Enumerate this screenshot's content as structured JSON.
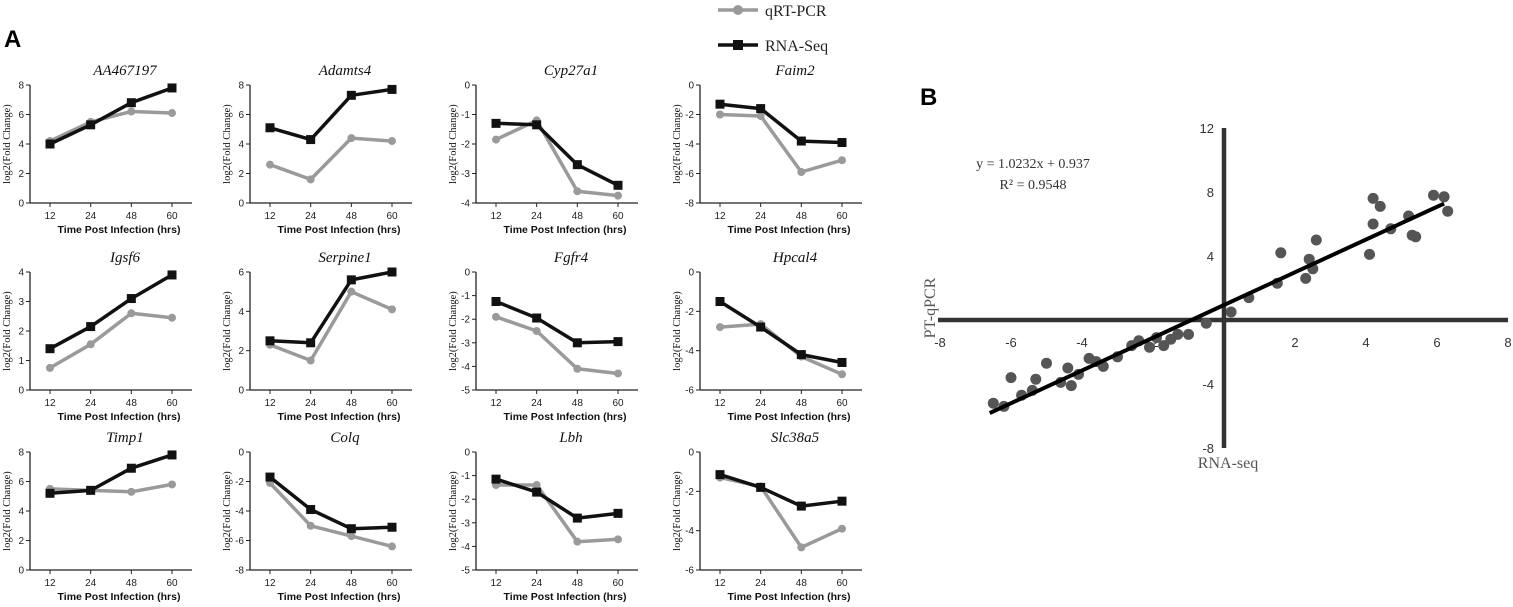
{
  "panel_a_label": "A",
  "panel_b_label": "B",
  "legend": {
    "qrtpcr": "qRT-PCR",
    "rnaseq": "RNA-Seq",
    "colors": {
      "qrtpcr": "#9a9a9a",
      "rnaseq": "#111111"
    }
  },
  "chart_data": [
    {
      "type": "line",
      "title": "AA467197",
      "categories": [
        "12",
        "24",
        "48",
        "60"
      ],
      "xlabel": "Time Post Infection (hrs)",
      "ylabel": "log2(Fold Change)",
      "ylim": [
        0,
        8
      ],
      "yticks": [
        "0",
        "2",
        "4",
        "6",
        "8"
      ],
      "series": [
        {
          "name": "qRT-PCR",
          "values": [
            4.2,
            5.5,
            6.2,
            6.1
          ]
        },
        {
          "name": "RNA-Seq",
          "values": [
            4.0,
            5.3,
            6.8,
            7.8
          ]
        }
      ]
    },
    {
      "type": "line",
      "title": "Adamts4",
      "categories": [
        "12",
        "24",
        "48",
        "60"
      ],
      "xlabel": "Time Post Infection (hrs)",
      "ylabel": "log2(Fold Change)",
      "ylim": [
        0,
        8
      ],
      "yticks": [
        "0",
        "2",
        "4",
        "6",
        "8"
      ],
      "series": [
        {
          "name": "qRT-PCR",
          "values": [
            2.6,
            1.6,
            4.4,
            4.2
          ]
        },
        {
          "name": "RNA-Seq",
          "values": [
            5.1,
            4.3,
            7.3,
            7.7
          ]
        }
      ]
    },
    {
      "type": "line",
      "title": "Cyp27a1",
      "categories": [
        "12",
        "24",
        "48",
        "60"
      ],
      "xlabel": "Time Post Infection (hrs)",
      "ylabel": "log2(Fold Change)",
      "ylim": [
        -4,
        0
      ],
      "yticks": [
        "-4",
        "-3",
        "-2",
        "-1",
        "0"
      ],
      "series": [
        {
          "name": "qRT-PCR",
          "values": [
            -1.85,
            -1.2,
            -3.6,
            -3.75
          ]
        },
        {
          "name": "RNA-Seq",
          "values": [
            -1.3,
            -1.35,
            -2.7,
            -3.4
          ]
        }
      ]
    },
    {
      "type": "line",
      "title": "Faim2",
      "categories": [
        "12",
        "24",
        "48",
        "60"
      ],
      "xlabel": "Time Post Infection (hrs)",
      "ylabel": "log2(Fold Change)",
      "ylim": [
        -8,
        0
      ],
      "yticks": [
        "-8",
        "-6",
        "-4",
        "-2",
        "0"
      ],
      "series": [
        {
          "name": "qRT-PCR",
          "values": [
            -2.0,
            -2.1,
            -5.9,
            -5.1
          ]
        },
        {
          "name": "RNA-Seq",
          "values": [
            -1.3,
            -1.6,
            -3.8,
            -3.9
          ]
        }
      ]
    },
    {
      "type": "line",
      "title": "Igsf6",
      "categories": [
        "12",
        "24",
        "48",
        "60"
      ],
      "xlabel": "Time Post Infection (hrs)",
      "ylabel": "log2(Fold Change)",
      "ylim": [
        0,
        4
      ],
      "yticks": [
        "0",
        "1",
        "2",
        "3",
        "4"
      ],
      "series": [
        {
          "name": "qRT-PCR",
          "values": [
            0.75,
            1.55,
            2.6,
            2.45
          ]
        },
        {
          "name": "RNA-Seq",
          "values": [
            1.4,
            2.15,
            3.1,
            3.9
          ]
        }
      ]
    },
    {
      "type": "line",
      "title": "Serpine1",
      "categories": [
        "12",
        "24",
        "48",
        "60"
      ],
      "xlabel": "Time Post Infection (hrs)",
      "ylabel": "log2(Fold Change)",
      "ylim": [
        0,
        6
      ],
      "yticks": [
        "0",
        "2",
        "4",
        "6"
      ],
      "series": [
        {
          "name": "qRT-PCR",
          "values": [
            2.3,
            1.5,
            5.0,
            4.1
          ]
        },
        {
          "name": "RNA-Seq",
          "values": [
            2.5,
            2.4,
            5.6,
            6.0
          ]
        }
      ]
    },
    {
      "type": "line",
      "title": "Fgfr4",
      "categories": [
        "12",
        "24",
        "48",
        "60"
      ],
      "xlabel": "Time Post Infection (hrs)",
      "ylabel": "log2(Fold Change)",
      "ylim": [
        -5,
        0
      ],
      "yticks": [
        "-5",
        "-4",
        "-3",
        "-2",
        "-1",
        "0"
      ],
      "series": [
        {
          "name": "qRT-PCR",
          "values": [
            -1.9,
            -2.5,
            -4.1,
            -4.3
          ]
        },
        {
          "name": "RNA-Seq",
          "values": [
            -1.25,
            -1.95,
            -3.0,
            -2.95
          ]
        }
      ]
    },
    {
      "type": "line",
      "title": "Hpcal4",
      "categories": [
        "12",
        "24",
        "48",
        "60"
      ],
      "xlabel": "Time Post Infection (hrs)",
      "ylabel": "log2(Fold Change)",
      "ylim": [
        -6,
        0
      ],
      "yticks": [
        "-6",
        "-4",
        "-2",
        "0"
      ],
      "series": [
        {
          "name": "qRT-PCR",
          "values": [
            -2.8,
            -2.65,
            -4.3,
            -5.2
          ]
        },
        {
          "name": "RNA-Seq",
          "values": [
            -1.5,
            -2.8,
            -4.2,
            -4.6
          ]
        }
      ]
    },
    {
      "type": "line",
      "title": "Timp1",
      "categories": [
        "12",
        "24",
        "48",
        "60"
      ],
      "xlabel": "Time Post Infection (hrs)",
      "ylabel": "log2(Fold Change)",
      "ylim": [
        0,
        8
      ],
      "yticks": [
        "0",
        "2",
        "4",
        "6",
        "8"
      ],
      "series": [
        {
          "name": "qRT-PCR",
          "values": [
            5.5,
            5.4,
            5.3,
            5.8
          ]
        },
        {
          "name": "RNA-Seq",
          "values": [
            5.2,
            5.4,
            6.9,
            7.8
          ]
        }
      ]
    },
    {
      "type": "line",
      "title": "Colq",
      "categories": [
        "12",
        "24",
        "48",
        "60"
      ],
      "xlabel": "Time Post Infection (hrs)",
      "ylabel": "log2(Fold Change)",
      "ylim": [
        -8,
        0
      ],
      "yticks": [
        "-8",
        "-6",
        "-4",
        "-2",
        "0"
      ],
      "series": [
        {
          "name": "qRT-PCR",
          "values": [
            -2.1,
            -5.0,
            -5.7,
            -6.4
          ]
        },
        {
          "name": "RNA-Seq",
          "values": [
            -1.7,
            -3.9,
            -5.2,
            -5.1
          ]
        }
      ]
    },
    {
      "type": "line",
      "title": "Lbh",
      "categories": [
        "12",
        "24",
        "48",
        "60"
      ],
      "xlabel": "Time Post Infection (hrs)",
      "ylabel": "log2(Fold Change)",
      "ylim": [
        -5,
        0
      ],
      "yticks": [
        "-5",
        "-4",
        "-3",
        "-2",
        "-1",
        "0"
      ],
      "series": [
        {
          "name": "qRT-PCR",
          "values": [
            -1.4,
            -1.4,
            -3.8,
            -3.7
          ]
        },
        {
          "name": "RNA-Seq",
          "values": [
            -1.15,
            -1.7,
            -2.8,
            -2.6
          ]
        }
      ]
    },
    {
      "type": "line",
      "title": "Slc38a5",
      "categories": [
        "12",
        "24",
        "48",
        "60"
      ],
      "xlabel": "Time Post Infection (hrs)",
      "ylabel": "log2(Fold Change)",
      "ylim": [
        -6,
        0
      ],
      "yticks": [
        "-6",
        "-4",
        "-2",
        "0"
      ],
      "series": [
        {
          "name": "qRT-PCR",
          "values": [
            -1.3,
            -1.75,
            -4.85,
            -3.9
          ]
        },
        {
          "name": "RNA-Seq",
          "values": [
            -1.15,
            -1.8,
            -2.75,
            -2.5
          ]
        }
      ]
    },
    {
      "type": "scatter",
      "title": "",
      "xlabel": "RNA-seq",
      "ylabel": "PT-qPCR",
      "xlim": [
        -8,
        8
      ],
      "ylim": [
        -8,
        12
      ],
      "xticks": [
        "-8",
        "-6",
        "-4",
        "-2",
        "2",
        "4",
        "6",
        "8"
      ],
      "yticks": [
        "-8",
        "-4",
        "4",
        "8",
        "12"
      ],
      "equation": "y = 1.0232x + 0.937",
      "r2": "R² = 0.9548",
      "fit": {
        "slope": 1.0232,
        "intercept": 0.937,
        "x_range": [
          -6.6,
          6.2
        ]
      },
      "points": [
        [
          -6.5,
          -5.2
        ],
        [
          -6.2,
          -5.4
        ],
        [
          -6.0,
          -3.6
        ],
        [
          -5.7,
          -4.7
        ],
        [
          -5.4,
          -4.4
        ],
        [
          -5.3,
          -3.7
        ],
        [
          -5.0,
          -2.7
        ],
        [
          -4.6,
          -3.9
        ],
        [
          -4.4,
          -3.0
        ],
        [
          -4.3,
          -4.1
        ],
        [
          -4.1,
          -3.4
        ],
        [
          -3.8,
          -2.4
        ],
        [
          -3.6,
          -2.6
        ],
        [
          -3.4,
          -2.9
        ],
        [
          -3.0,
          -2.3
        ],
        [
          -2.6,
          -1.6
        ],
        [
          -2.4,
          -1.3
        ],
        [
          -2.1,
          -1.7
        ],
        [
          -1.9,
          -1.1
        ],
        [
          -1.7,
          -1.6
        ],
        [
          -1.5,
          -1.2
        ],
        [
          -1.3,
          -0.9
        ],
        [
          -1.0,
          -0.9
        ],
        [
          -0.5,
          -0.2
        ],
        [
          0.2,
          0.5
        ],
        [
          0.7,
          1.4
        ],
        [
          1.5,
          2.3
        ],
        [
          1.6,
          4.2
        ],
        [
          2.3,
          2.6
        ],
        [
          2.4,
          3.8
        ],
        [
          2.5,
          3.2
        ],
        [
          2.6,
          5.0
        ],
        [
          4.1,
          4.1
        ],
        [
          4.2,
          6.0
        ],
        [
          4.2,
          7.6
        ],
        [
          4.4,
          7.1
        ],
        [
          4.7,
          5.7
        ],
        [
          5.2,
          6.5
        ],
        [
          5.3,
          5.3
        ],
        [
          5.4,
          5.2
        ],
        [
          5.9,
          7.8
        ],
        [
          6.2,
          7.7
        ],
        [
          6.3,
          6.8
        ]
      ]
    }
  ]
}
